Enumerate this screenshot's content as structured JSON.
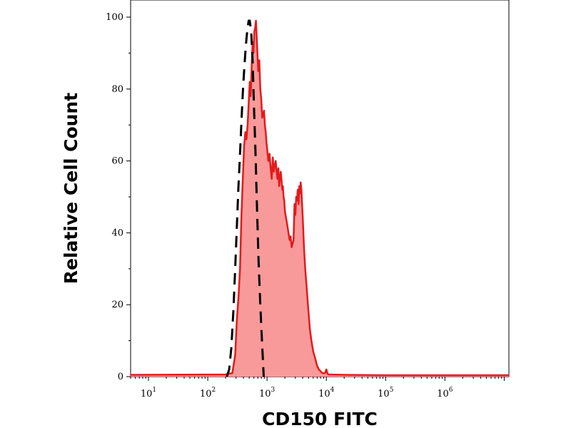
{
  "chart_data": {
    "type": "area",
    "title": "",
    "xlabel": "CD150 FITC",
    "ylabel": "Relative Cell Count",
    "xscale": "log",
    "xlim": [
      5,
      12000000
    ],
    "ylim": [
      0,
      100
    ],
    "grid": false,
    "legend": "none",
    "x_ticks": [
      {
        "base": "10",
        "exp": "1",
        "value": 10
      },
      {
        "base": "10",
        "exp": "2",
        "value": 100
      },
      {
        "base": "10",
        "exp": "3",
        "value": 1000
      },
      {
        "base": "10",
        "exp": "4",
        "value": 10000
      },
      {
        "base": "10",
        "exp": "5",
        "value": 100000
      },
      {
        "base": "10",
        "exp": "6",
        "value": 1000000
      }
    ],
    "y_ticks": [
      "0",
      "20",
      "40",
      "60",
      "80",
      "100"
    ],
    "series": [
      {
        "style": "filled-solid",
        "color": "#e41a1c",
        "fill": "#f99a9a",
        "x": [
          5,
          200,
          260,
          290,
          310,
          330,
          350,
          370,
          390,
          410,
          430,
          450,
          470,
          490,
          510,
          530,
          550,
          570,
          590,
          610,
          630,
          650,
          680,
          710,
          740,
          770,
          800,
          830,
          860,
          890,
          920,
          950,
          980,
          1010,
          1050,
          1100,
          1150,
          1200,
          1250,
          1300,
          1350,
          1400,
          1450,
          1500,
          1550,
          1600,
          1650,
          1700,
          1750,
          1800,
          1850,
          1900,
          1950,
          2000,
          2100,
          2200,
          2300,
          2400,
          2500,
          2600,
          2700,
          2800,
          2900,
          3000,
          3100,
          3200,
          3300,
          3400,
          3500,
          3600,
          3700,
          3800,
          3900,
          4000,
          4200,
          4400,
          4600,
          4800,
          5000,
          5300,
          5600,
          6000,
          6500,
          7000,
          7500,
          8000,
          8500,
          9000,
          9500,
          10000,
          10500,
          11000,
          20000,
          100000,
          1000000,
          12000000
        ],
        "y": [
          0.5,
          0.6,
          1,
          6,
          16,
          22,
          30,
          45,
          55,
          64,
          68,
          66,
          70,
          76,
          82,
          78,
          86,
          93,
          90,
          96,
          97,
          99,
          92,
          85,
          88,
          80,
          77,
          72,
          73,
          74,
          70,
          68,
          65,
          63,
          60,
          62,
          58,
          55,
          61,
          57,
          59,
          60,
          57,
          55,
          58,
          53,
          55,
          57,
          55,
          52,
          53,
          50,
          49,
          46,
          44,
          42,
          40,
          38,
          39,
          36,
          37,
          38,
          48,
          45,
          50,
          49,
          52,
          48,
          53,
          51,
          54,
          52,
          48,
          44,
          36,
          30,
          26,
          22,
          18,
          13,
          10,
          7,
          5,
          3,
          2,
          1.5,
          1,
          1,
          1,
          2,
          0.8,
          0.6,
          0.5,
          0.4,
          0.4,
          0.4
        ]
      },
      {
        "style": "dashed",
        "color": "#000000",
        "x": [
          210,
          230,
          250,
          270,
          290,
          310,
          330,
          350,
          370,
          390,
          410,
          430,
          450,
          470,
          490,
          510,
          540,
          570,
          600,
          640,
          680,
          720,
          770,
          820,
          880
        ],
        "y": [
          0,
          2,
          8,
          18,
          30,
          42,
          53,
          62,
          71,
          79,
          85,
          90,
          94,
          97,
          99,
          99,
          96,
          88,
          76,
          62,
          46,
          32,
          20,
          10,
          0
        ]
      }
    ]
  }
}
